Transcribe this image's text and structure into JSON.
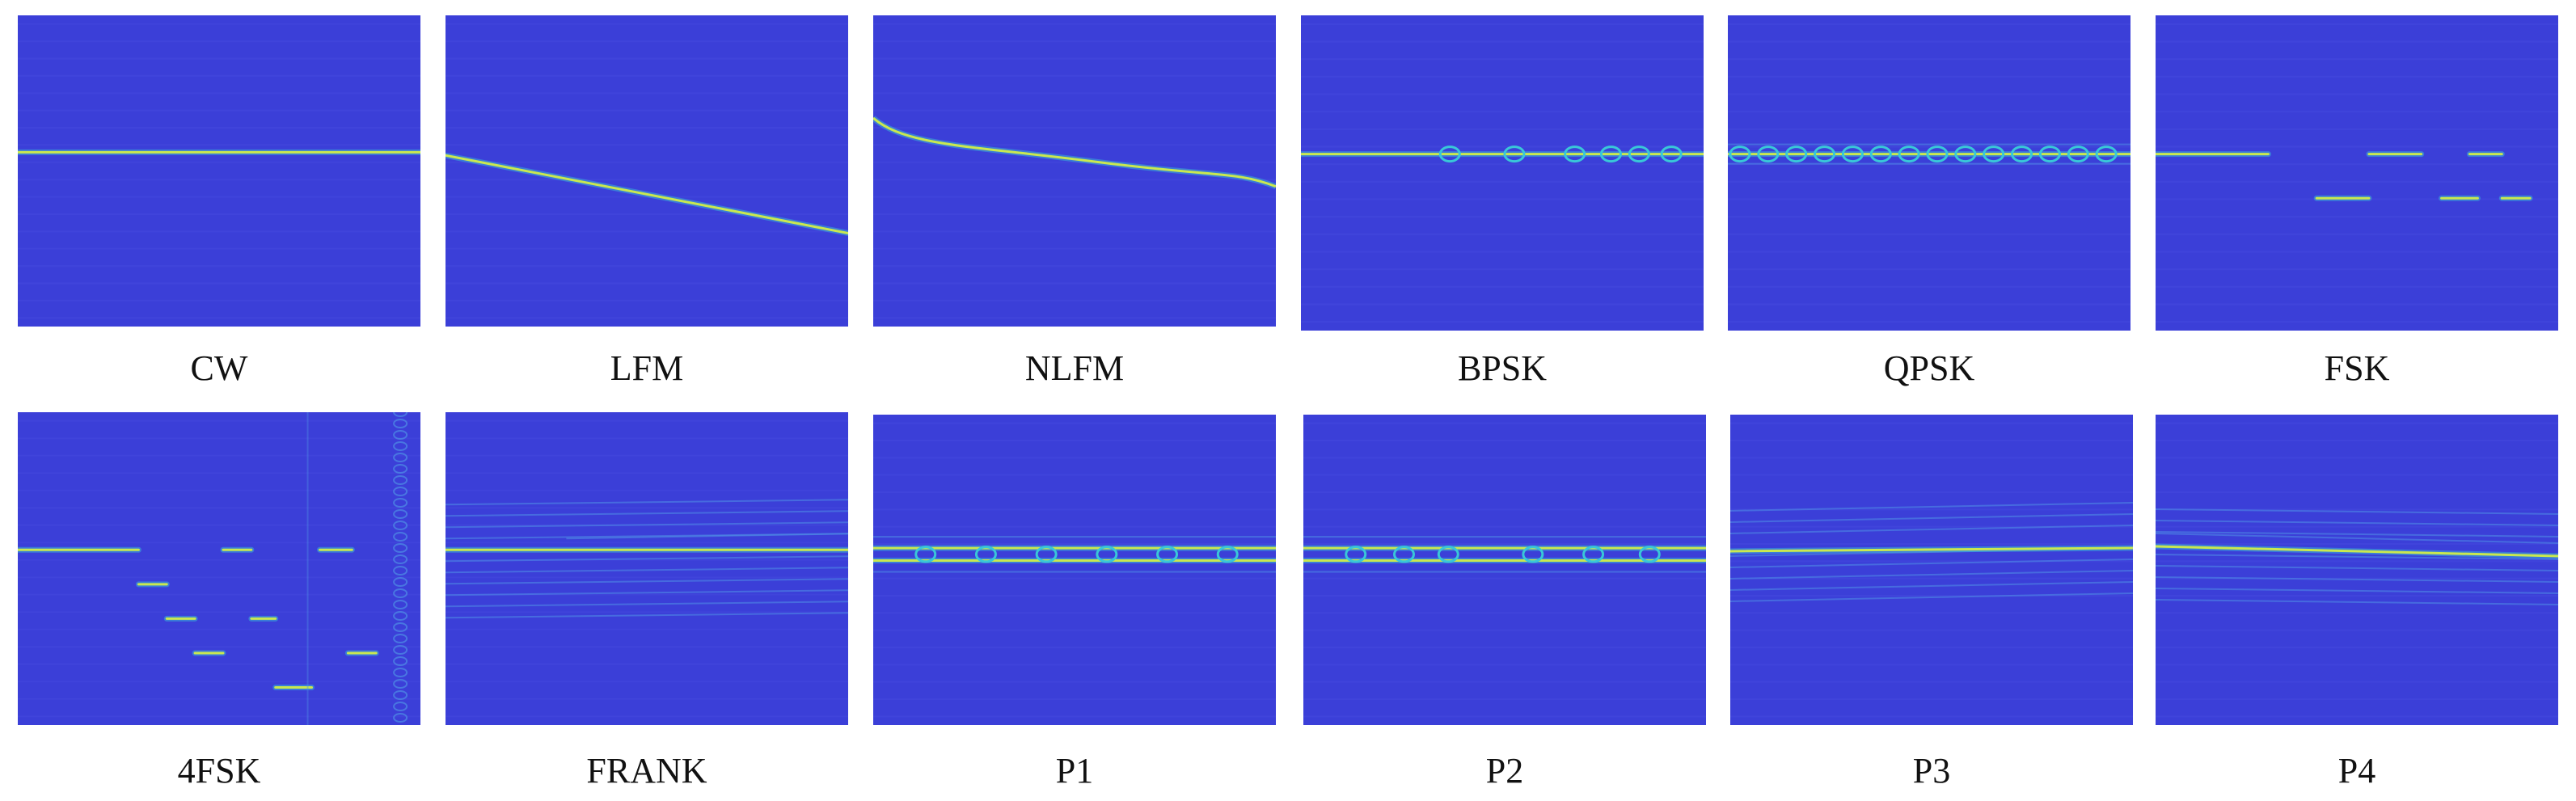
{
  "colors": {
    "background": "#3b3fd8",
    "background_noise": "#4a4fe3",
    "trace": "#c9e84f",
    "trace_glow": "#39c7d8",
    "faint_line": "#4f8fe6"
  },
  "panels": [
    {
      "label": "CW",
      "pattern": "cw"
    },
    {
      "label": "LFM",
      "pattern": "lfm"
    },
    {
      "label": "NLFM",
      "pattern": "nlfm"
    },
    {
      "label": "BPSK",
      "pattern": "bpsk"
    },
    {
      "label": "QPSK",
      "pattern": "qpsk"
    },
    {
      "label": "FSK",
      "pattern": "fsk"
    },
    {
      "label": "4FSK",
      "pattern": "fsk4"
    },
    {
      "label": "FRANK",
      "pattern": "frank"
    },
    {
      "label": "P1",
      "pattern": "p1"
    },
    {
      "label": "P2",
      "pattern": "p2"
    },
    {
      "label": "P3",
      "pattern": "p3"
    },
    {
      "label": "P4",
      "pattern": "p4"
    }
  ]
}
